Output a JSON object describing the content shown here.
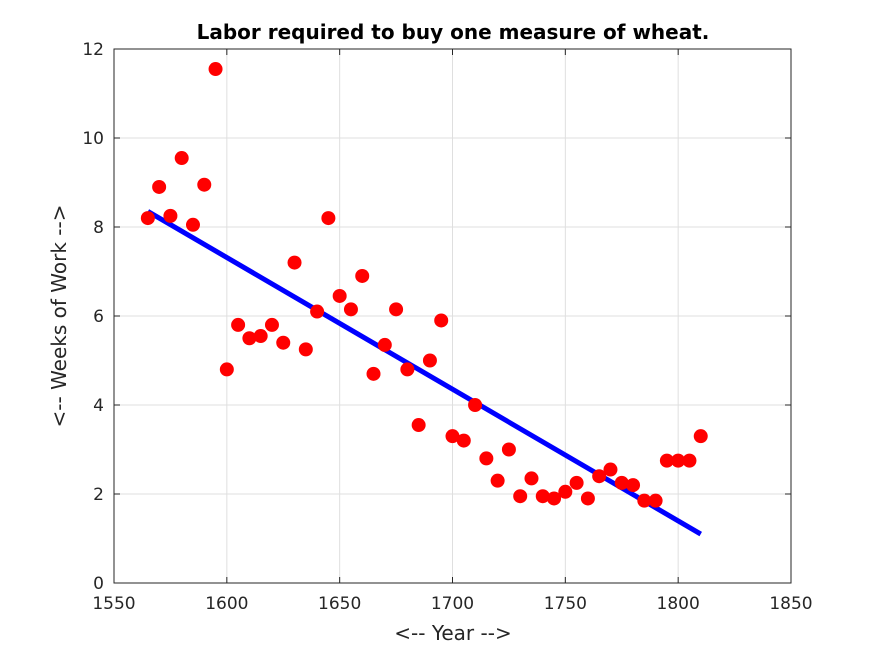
{
  "chart_data": {
    "type": "scatter",
    "title": "Labor required to buy one measure of wheat.",
    "xlabel": "<-- Year -->",
    "ylabel": "<-- Weeks of Work -->",
    "xlim": [
      1550,
      1850
    ],
    "ylim": [
      0,
      12
    ],
    "xticks": [
      1550,
      1600,
      1650,
      1700,
      1750,
      1800,
      1850
    ],
    "yticks": [
      0,
      2,
      4,
      6,
      8,
      10,
      12
    ],
    "xtick_labels": [
      "1550",
      "1600",
      "1650",
      "1700",
      "1750",
      "1800",
      "1850"
    ],
    "ytick_labels": [
      "0",
      "2",
      "4",
      "6",
      "8",
      "10",
      "12"
    ],
    "grid": true,
    "series": [
      {
        "kind": "scatter",
        "color": "#ff0000",
        "x": [
          1565,
          1570,
          1575,
          1580,
          1585,
          1590,
          1595,
          1600,
          1605,
          1610,
          1615,
          1620,
          1625,
          1630,
          1635,
          1640,
          1645,
          1650,
          1655,
          1660,
          1665,
          1670,
          1675,
          1680,
          1685,
          1690,
          1695,
          1700,
          1705,
          1710,
          1715,
          1720,
          1725,
          1730,
          1735,
          1740,
          1745,
          1750,
          1755,
          1760,
          1765,
          1770,
          1775,
          1780,
          1785,
          1790,
          1795,
          1800,
          1805,
          1810
        ],
        "y": [
          8.2,
          8.9,
          8.25,
          9.55,
          8.05,
          8.95,
          11.55,
          4.8,
          5.8,
          5.5,
          5.55,
          5.8,
          5.4,
          7.2,
          5.25,
          6.1,
          8.2,
          6.45,
          6.15,
          6.9,
          4.7,
          5.35,
          6.15,
          4.8,
          3.55,
          5.0,
          5.9,
          3.3,
          3.2,
          4.0,
          2.8,
          2.3,
          3.0,
          1.95,
          2.35,
          1.95,
          1.9,
          2.05,
          2.25,
          1.9,
          2.4,
          2.55,
          2.25,
          2.2,
          1.85,
          1.85,
          2.75,
          2.75,
          2.75,
          3.3
        ]
      },
      {
        "kind": "line",
        "color": "#0000ff",
        "x": [
          1565,
          1810
        ],
        "y": [
          8.35,
          1.1
        ]
      }
    ]
  }
}
